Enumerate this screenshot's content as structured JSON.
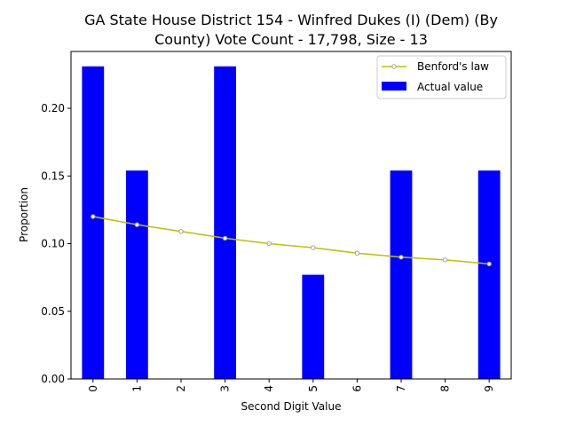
{
  "chart_data": {
    "type": "bar",
    "title_lines": [
      "GA State House District 154 - Winfred Dukes (I) (Dem) (By",
      "County) Vote Count - 17,798, Size - 13"
    ],
    "xlabel": "Second Digit Value",
    "ylabel": "Proportion",
    "categories": [
      "0",
      "1",
      "2",
      "3",
      "4",
      "5",
      "6",
      "7",
      "8",
      "9"
    ],
    "ylim": [
      0,
      0.242
    ],
    "yticks": [
      "0.00",
      "0.05",
      "0.10",
      "0.15",
      "0.20"
    ],
    "ytick_values": [
      0,
      0.05,
      0.1,
      0.15,
      0.2
    ],
    "series": [
      {
        "name": "Actual value",
        "kind": "bar",
        "color": "#0000ff",
        "values": [
          0.231,
          0.154,
          0,
          0.231,
          0,
          0.077,
          0,
          0.154,
          0,
          0.154
        ]
      },
      {
        "name": "Benford's law",
        "kind": "line",
        "color": "#bfbf00",
        "marker_color": "#a0a0a0",
        "values": [
          0.12,
          0.114,
          0.109,
          0.104,
          0.1,
          0.097,
          0.093,
          0.09,
          0.088,
          0.085
        ]
      }
    ],
    "legend_position": "top-right",
    "grid": false
  }
}
